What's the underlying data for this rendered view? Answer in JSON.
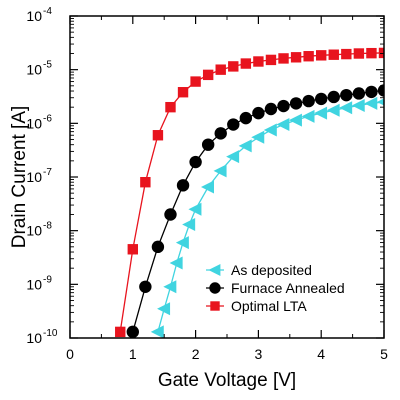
{
  "chart_data": {
    "type": "line",
    "xlabel": "Gate Voltage [V]",
    "ylabel": "Drain Current [A]",
    "xlim": [
      0,
      5
    ],
    "ylim": [
      1e-10,
      0.0001
    ],
    "yscale": "log",
    "grid": false,
    "legend_position": "lower-right",
    "x_ticks": [
      "0",
      "1",
      "2",
      "3",
      "4",
      "5"
    ],
    "y_ticks": [
      {
        "base": "10",
        "exp": "-10",
        "value": 1e-10
      },
      {
        "base": "10",
        "exp": "-9",
        "value": 1e-09
      },
      {
        "base": "10",
        "exp": "-8",
        "value": 1e-08
      },
      {
        "base": "10",
        "exp": "-7",
        "value": 1e-07
      },
      {
        "base": "10",
        "exp": "-6",
        "value": 1e-06
      },
      {
        "base": "10",
        "exp": "-5",
        "value": 1e-05
      },
      {
        "base": "10",
        "exp": "-4",
        "value": 0.0001
      }
    ],
    "series": [
      {
        "name": "As deposited",
        "color": "#40d4e0",
        "marker": "triangle-left",
        "x": [
          1.4,
          1.5,
          1.6,
          1.7,
          1.8,
          1.9,
          2.0,
          2.2,
          2.4,
          2.6,
          2.8,
          3.0,
          3.2,
          3.4,
          3.6,
          3.8,
          4.0,
          4.2,
          4.4,
          4.6,
          4.8,
          5.0
        ],
        "y": [
          1.3e-10,
          3.5e-10,
          9e-10,
          2.5e-09,
          6e-09,
          1.3e-08,
          2.5e-08,
          6.5e-08,
          1.3e-07,
          2.4e-07,
          3.8e-07,
          5.5e-07,
          7.5e-07,
          9.5e-07,
          1.15e-06,
          1.35e-06,
          1.55e-06,
          1.75e-06,
          1.95e-06,
          2.15e-06,
          2.35e-06,
          2.5e-06
        ]
      },
      {
        "name": "Furnace Annealed",
        "color": "#000000",
        "marker": "circle",
        "x": [
          1.0,
          1.2,
          1.4,
          1.6,
          1.8,
          2.0,
          2.2,
          2.4,
          2.6,
          2.8,
          3.0,
          3.2,
          3.4,
          3.6,
          3.8,
          4.0,
          4.2,
          4.4,
          4.6,
          4.8,
          5.0
        ],
        "y": [
          1.3e-10,
          9e-10,
          5e-09,
          2e-08,
          7e-08,
          1.9e-07,
          4e-07,
          6.5e-07,
          9.5e-07,
          1.25e-06,
          1.55e-06,
          1.85e-06,
          2.1e-06,
          2.35e-06,
          2.6e-06,
          2.85e-06,
          3.1e-06,
          3.35e-06,
          3.6e-06,
          3.85e-06,
          4.1e-06
        ]
      },
      {
        "name": "Optimal LTA",
        "color": "#e8141e",
        "marker": "square",
        "x": [
          0.8,
          1.0,
          1.2,
          1.4,
          1.6,
          1.8,
          2.0,
          2.2,
          2.4,
          2.6,
          2.8,
          3.0,
          3.2,
          3.4,
          3.6,
          3.8,
          4.0,
          4.2,
          4.4,
          4.6,
          4.8,
          5.0
        ],
        "y": [
          1.3e-10,
          4.5e-09,
          8e-08,
          6e-07,
          2e-06,
          3.8e-06,
          6e-06,
          8e-06,
          1e-05,
          1.15e-05,
          1.3e-05,
          1.42e-05,
          1.52e-05,
          1.62e-05,
          1.7e-05,
          1.78e-05,
          1.85e-05,
          1.9e-05,
          1.95e-05,
          2e-05,
          2.03e-05,
          2.05e-05
        ]
      }
    ]
  }
}
